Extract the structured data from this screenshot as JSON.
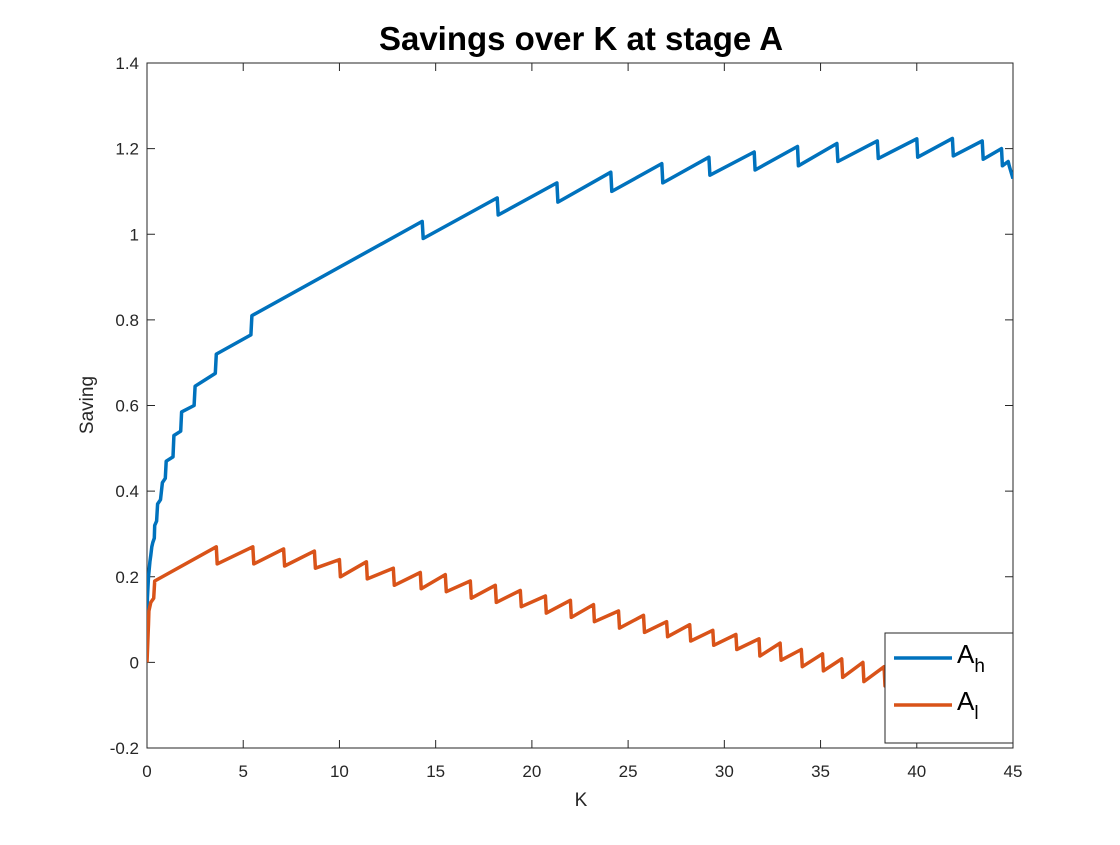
{
  "colors": {
    "series_h": "#0072BD",
    "series_l": "#D95319",
    "axis": "#262626",
    "background": "#ffffff"
  },
  "chart_data": {
    "type": "line",
    "title": "Savings over K at stage A",
    "xlabel": "K",
    "ylabel": "Saving",
    "xlim": [
      0,
      45
    ],
    "ylim": [
      -0.2,
      1.4
    ],
    "xticks": [
      0,
      5,
      10,
      15,
      20,
      25,
      30,
      35,
      40,
      45
    ],
    "yticks": [
      -0.2,
      0,
      0.2,
      0.4,
      0.6,
      0.8,
      1,
      1.2,
      1.4
    ],
    "xtick_labels": [
      "0",
      "5",
      "10",
      "15",
      "20",
      "25",
      "30",
      "35",
      "40",
      "45"
    ],
    "ytick_labels": [
      "-0.2",
      "0",
      "0.2",
      "0.4",
      "0.6",
      "0.8",
      "1",
      "1.2",
      "1.4"
    ],
    "grid": false,
    "legend_position": "bottom-right",
    "series": [
      {
        "name": "A_h",
        "legend_main": "A",
        "legend_sub": "h",
        "color": "#0072BD",
        "points": [
          [
            0,
            0.09
          ],
          [
            0.02,
            0.15
          ],
          [
            0.08,
            0.2
          ],
          [
            0.15,
            0.235
          ],
          [
            0.2,
            0.25
          ],
          [
            0.25,
            0.27
          ],
          [
            0.3,
            0.28
          ],
          [
            0.38,
            0.29
          ],
          [
            0.4,
            0.32
          ],
          [
            0.5,
            0.33
          ],
          [
            0.55,
            0.37
          ],
          [
            0.7,
            0.38
          ],
          [
            0.8,
            0.42
          ],
          [
            0.95,
            0.43
          ],
          [
            1.0,
            0.47
          ],
          [
            1.35,
            0.48
          ],
          [
            1.4,
            0.53
          ],
          [
            1.75,
            0.54
          ],
          [
            1.8,
            0.585
          ],
          [
            2.45,
            0.6
          ],
          [
            2.5,
            0.645
          ],
          [
            3.55,
            0.675
          ],
          [
            3.6,
            0.72
          ],
          [
            5.4,
            0.765
          ],
          [
            5.45,
            0.81
          ],
          [
            14.3,
            1.03
          ],
          [
            14.35,
            0.99
          ],
          [
            18.2,
            1.085
          ],
          [
            18.25,
            1.045
          ],
          [
            21.3,
            1.12
          ],
          [
            21.35,
            1.075
          ],
          [
            24.1,
            1.145
          ],
          [
            24.15,
            1.1
          ],
          [
            26.75,
            1.165
          ],
          [
            26.8,
            1.12
          ],
          [
            29.2,
            1.18
          ],
          [
            29.25,
            1.138
          ],
          [
            31.55,
            1.192
          ],
          [
            31.6,
            1.15
          ],
          [
            33.8,
            1.205
          ],
          [
            33.85,
            1.16
          ],
          [
            35.85,
            1.212
          ],
          [
            35.9,
            1.17
          ],
          [
            37.95,
            1.218
          ],
          [
            38.0,
            1.177
          ],
          [
            40.0,
            1.223
          ],
          [
            40.05,
            1.18
          ],
          [
            41.85,
            1.224
          ],
          [
            41.9,
            1.183
          ],
          [
            43.4,
            1.218
          ],
          [
            43.45,
            1.175
          ],
          [
            44.4,
            1.2
          ],
          [
            44.45,
            1.16
          ],
          [
            44.75,
            1.17
          ],
          [
            44.8,
            1.16
          ],
          [
            45.0,
            1.13
          ]
        ]
      },
      {
        "name": "A_l",
        "legend_main": "A",
        "legend_sub": "l",
        "color": "#D95319",
        "points": [
          [
            0,
            0
          ],
          [
            0.08,
            0.09
          ],
          [
            0.1,
            0.12
          ],
          [
            0.2,
            0.14
          ],
          [
            0.35,
            0.15
          ],
          [
            0.4,
            0.19
          ],
          [
            3.6,
            0.27
          ],
          [
            3.65,
            0.23
          ],
          [
            5.5,
            0.27
          ],
          [
            5.55,
            0.23
          ],
          [
            7.1,
            0.265
          ],
          [
            7.15,
            0.225
          ],
          [
            8.7,
            0.26
          ],
          [
            8.75,
            0.22
          ],
          [
            10.0,
            0.24
          ],
          [
            10.05,
            0.2
          ],
          [
            11.4,
            0.235
          ],
          [
            11.45,
            0.195
          ],
          [
            12.8,
            0.22
          ],
          [
            12.85,
            0.18
          ],
          [
            14.2,
            0.21
          ],
          [
            14.25,
            0.172
          ],
          [
            15.5,
            0.205
          ],
          [
            15.55,
            0.165
          ],
          [
            16.8,
            0.19
          ],
          [
            16.85,
            0.15
          ],
          [
            18.1,
            0.18
          ],
          [
            18.15,
            0.14
          ],
          [
            19.4,
            0.168
          ],
          [
            19.45,
            0.13
          ],
          [
            20.7,
            0.155
          ],
          [
            20.75,
            0.115
          ],
          [
            22.0,
            0.145
          ],
          [
            22.05,
            0.105
          ],
          [
            23.2,
            0.135
          ],
          [
            23.25,
            0.095
          ],
          [
            24.5,
            0.12
          ],
          [
            24.55,
            0.08
          ],
          [
            25.8,
            0.11
          ],
          [
            25.85,
            0.07
          ],
          [
            27.0,
            0.095
          ],
          [
            27.05,
            0.06
          ],
          [
            28.2,
            0.088
          ],
          [
            28.25,
            0.05
          ],
          [
            29.4,
            0.075
          ],
          [
            29.45,
            0.04
          ],
          [
            30.6,
            0.065
          ],
          [
            30.65,
            0.03
          ],
          [
            31.8,
            0.055
          ],
          [
            31.85,
            0.015
          ],
          [
            32.9,
            0.045
          ],
          [
            32.95,
            0.005
          ],
          [
            34.0,
            0.03
          ],
          [
            34.05,
            -0.01
          ],
          [
            35.1,
            0.02
          ],
          [
            35.15,
            -0.02
          ],
          [
            36.1,
            0.008
          ],
          [
            36.15,
            -0.035
          ],
          [
            37.2,
            0.0
          ],
          [
            37.25,
            -0.045
          ],
          [
            38.3,
            -0.01
          ],
          [
            38.35,
            -0.055
          ],
          [
            39.4,
            -0.02
          ],
          [
            39.45,
            -0.06
          ],
          [
            40.5,
            -0.03
          ],
          [
            40.55,
            -0.07
          ],
          [
            41.5,
            -0.045
          ],
          [
            41.55,
            -0.085
          ],
          [
            42.5,
            -0.055
          ],
          [
            42.55,
            -0.095
          ],
          [
            43.5,
            -0.07
          ],
          [
            43.55,
            -0.11
          ],
          [
            45.0,
            -0.09
          ]
        ]
      }
    ]
  }
}
